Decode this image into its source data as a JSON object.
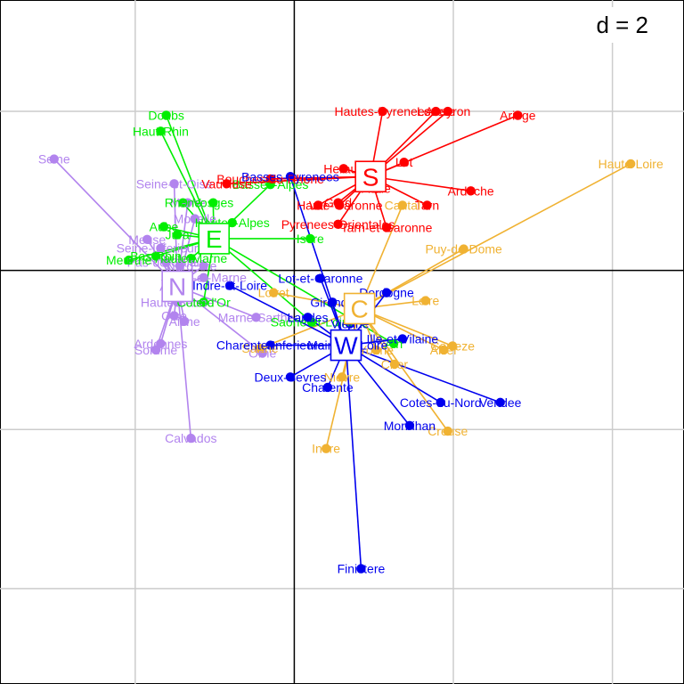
{
  "chart_data": {
    "type": "scatter",
    "title": "",
    "scale_label": "d = 2",
    "xlim": [
      -3.7,
      4.9
    ],
    "ylim": [
      -5.2,
      3.4
    ],
    "grid_step": 2,
    "axes_at_origin": true,
    "colors": {
      "S": "#ff0000",
      "E": "#00ee00",
      "N": "#b284ee",
      "C": "#f0b232",
      "W": "#0000ee"
    },
    "groups": [
      {
        "id": "S",
        "label": "S",
        "center": [
          0.96,
          1.18
        ]
      },
      {
        "id": "E",
        "label": "E",
        "center": [
          -1.01,
          0.4
        ]
      },
      {
        "id": "N",
        "label": "N",
        "center": [
          -1.47,
          -0.2
        ]
      },
      {
        "id": "C",
        "label": "C",
        "center": [
          0.82,
          -0.48
        ]
      },
      {
        "id": "W",
        "label": "W",
        "center": [
          0.65,
          -0.94
        ]
      }
    ],
    "points": [
      {
        "label": "Seine",
        "group": "N",
        "x": -3.02,
        "y": 1.4
      },
      {
        "label": "Seine-et-Oise",
        "group": "N",
        "x": -1.51,
        "y": 1.09
      },
      {
        "label": "Marne",
        "group": "N",
        "x": -1.34,
        "y": 0.85
      },
      {
        "label": "Moselle",
        "group": "N",
        "x": -1.25,
        "y": 0.65
      },
      {
        "label": "Meuse",
        "group": "N",
        "x": -1.85,
        "y": 0.39
      },
      {
        "label": "Seine-Inferieure",
        "group": "N",
        "x": -1.68,
        "y": 0.28
      },
      {
        "label": "Pas-de-Calais",
        "group": "N",
        "x": -1.61,
        "y": 0.1
      },
      {
        "label": "Nord",
        "group": "N",
        "x": -1.44,
        "y": 0.06
      },
      {
        "label": "Eure",
        "group": "N",
        "x": -1.14,
        "y": 0.06
      },
      {
        "label": "Seine-et-Marne",
        "group": "N",
        "x": -1.14,
        "y": -0.09
      },
      {
        "label": "Aube",
        "group": "N",
        "x": -1.51,
        "y": -0.2
      },
      {
        "label": "Haute-Saone",
        "group": "N",
        "x": -1.47,
        "y": -0.4
      },
      {
        "label": "Marne-Sarthe",
        "group": "N",
        "x": -0.48,
        "y": -0.59
      },
      {
        "label": "Oise",
        "group": "N",
        "x": -1.51,
        "y": -0.57
      },
      {
        "label": "Aisne",
        "group": "N",
        "x": -1.38,
        "y": -0.64
      },
      {
        "label": "Ardennes",
        "group": "N",
        "x": -1.68,
        "y": -0.92
      },
      {
        "label": "Somme",
        "group": "N",
        "x": -1.74,
        "y": -1.0
      },
      {
        "label": "Orne",
        "group": "N",
        "x": -0.4,
        "y": -1.04
      },
      {
        "label": "Calvados",
        "group": "N",
        "x": -1.3,
        "y": -2.11
      },
      {
        "label": "Doubs",
        "group": "E",
        "x": -1.61,
        "y": 1.95
      },
      {
        "label": "Haut-Rhin",
        "group": "E",
        "x": -1.68,
        "y": 1.75
      },
      {
        "label": "Rhone",
        "group": "E",
        "x": -1.4,
        "y": 0.85
      },
      {
        "label": "Vosges",
        "group": "E",
        "x": -1.02,
        "y": 0.85
      },
      {
        "label": "Basses-Alpes",
        "group": "E",
        "x": -0.3,
        "y": 1.08
      },
      {
        "label": "Hautes-Alpes",
        "group": "E",
        "x": -0.78,
        "y": 0.6
      },
      {
        "label": "Ain",
        "group": "E",
        "x": 1.25,
        "y": -0.92
      },
      {
        "label": "Isere",
        "group": "E",
        "x": 0.2,
        "y": 0.4
      },
      {
        "label": "Aube",
        "group": "E",
        "x": -1.64,
        "y": 0.55
      },
      {
        "label": "Jura",
        "group": "E",
        "x": -1.47,
        "y": 0.45
      },
      {
        "label": "Haute-Marne",
        "group": "E",
        "x": -1.3,
        "y": 0.15
      },
      {
        "label": "Meurthe",
        "group": "E",
        "x": -2.08,
        "y": 0.13
      },
      {
        "label": "Bas-Rhin",
        "group": "E",
        "x": -1.74,
        "y": 0.18
      },
      {
        "label": "Cote-d'Or",
        "group": "E",
        "x": -1.14,
        "y": -0.4
      },
      {
        "label": "Saone-et-Loire",
        "group": "E",
        "x": 0.22,
        "y": -0.65
      },
      {
        "label": "Vaucluse",
        "group": "S",
        "x": -0.85,
        "y": 1.09
      },
      {
        "label": "Bouches-du-Rhone",
        "group": "S",
        "x": -0.3,
        "y": 1.15
      },
      {
        "label": "Var",
        "group": "S",
        "x": 0.3,
        "y": 0.82
      },
      {
        "label": "Gard",
        "group": "S",
        "x": 0.55,
        "y": 0.85
      },
      {
        "label": "Herault",
        "group": "S",
        "x": 0.62,
        "y": 1.28
      },
      {
        "label": "Hautes-Pyrenees",
        "group": "S",
        "x": 1.11,
        "y": 2.0
      },
      {
        "label": "Lozere",
        "group": "S",
        "x": 1.78,
        "y": 2.0
      },
      {
        "label": "Aveyron",
        "group": "S",
        "x": 1.93,
        "y": 2.0
      },
      {
        "label": "Ariege",
        "group": "S",
        "x": 2.81,
        "y": 1.95
      },
      {
        "label": "Lot",
        "group": "S",
        "x": 1.38,
        "y": 1.36
      },
      {
        "label": "Aude",
        "group": "S",
        "x": 1.03,
        "y": 1.03
      },
      {
        "label": "Ardeche",
        "group": "S",
        "x": 2.22,
        "y": 1.0
      },
      {
        "label": "Tarn",
        "group": "S",
        "x": 1.67,
        "y": 0.82
      },
      {
        "label": "Haute-Garonne",
        "group": "S",
        "x": 0.57,
        "y": 0.82
      },
      {
        "label": "Pyrenees-Orientales",
        "group": "S",
        "x": 0.55,
        "y": 0.58
      },
      {
        "label": "Tarn-et-Garonne",
        "group": "S",
        "x": 1.16,
        "y": 0.54
      },
      {
        "label": "Haute-Loire",
        "group": "C",
        "x": 4.23,
        "y": 1.34
      },
      {
        "label": "Puy-de-Dome",
        "group": "C",
        "x": 2.13,
        "y": 0.27
      },
      {
        "label": "Cantal",
        "group": "C",
        "x": 1.36,
        "y": 0.82
      },
      {
        "label": "Loire",
        "group": "C",
        "x": 1.65,
        "y": -0.38
      },
      {
        "label": "Correze",
        "group": "C",
        "x": 1.99,
        "y": -0.95
      },
      {
        "label": "Allier",
        "group": "C",
        "x": 1.88,
        "y": -1.0
      },
      {
        "label": "Nievre",
        "group": "C",
        "x": 0.6,
        "y": -1.34
      },
      {
        "label": "Cher",
        "group": "C",
        "x": 1.26,
        "y": -1.18
      },
      {
        "label": "Creuse",
        "group": "C",
        "x": 1.93,
        "y": -2.02
      },
      {
        "label": "Indre",
        "group": "C",
        "x": 0.4,
        "y": -2.24
      },
      {
        "label": "Yonne",
        "group": "C",
        "x": 1.03,
        "y": -1.0
      },
      {
        "label": "Loiret",
        "group": "C",
        "x": -0.26,
        "y": -0.28
      },
      {
        "label": "Sarthe",
        "group": "C",
        "x": -0.43,
        "y": -0.98
      },
      {
        "label": "Lot-et-Garonne",
        "group": "W",
        "x": 0.33,
        "y": -0.1
      },
      {
        "label": "Dordogne",
        "group": "W",
        "x": 1.16,
        "y": -0.28
      },
      {
        "label": "Basses-Pyrenees",
        "group": "W",
        "x": -0.05,
        "y": 1.18
      },
      {
        "label": "Indre-et-Loire",
        "group": "W",
        "x": -0.81,
        "y": -0.19
      },
      {
        "label": "Landes",
        "group": "W",
        "x": 0.17,
        "y": -0.59
      },
      {
        "label": "Gironde",
        "group": "W",
        "x": 0.48,
        "y": -0.4
      },
      {
        "label": "Vienne",
        "group": "W",
        "x": 0.7,
        "y": -0.67
      },
      {
        "label": "Charente-Inferieure",
        "group": "W",
        "x": -0.3,
        "y": -0.94
      },
      {
        "label": "Maine-et-Loire",
        "group": "W",
        "x": 0.67,
        "y": -0.94
      },
      {
        "label": "Ille-et-Vilaine",
        "group": "W",
        "x": 1.36,
        "y": -0.86
      },
      {
        "label": "Deux-Sevres",
        "group": "W",
        "x": -0.05,
        "y": -1.34
      },
      {
        "label": "Charente",
        "group": "W",
        "x": 0.42,
        "y": -1.47
      },
      {
        "label": "Cotes-du-Nord",
        "group": "W",
        "x": 1.84,
        "y": -1.66
      },
      {
        "label": "Vendee",
        "group": "W",
        "x": 2.59,
        "y": -1.66
      },
      {
        "label": "Morbihan",
        "group": "W",
        "x": 1.45,
        "y": -1.95
      },
      {
        "label": "Finistere",
        "group": "W",
        "x": 0.84,
        "y": -3.75
      }
    ]
  }
}
